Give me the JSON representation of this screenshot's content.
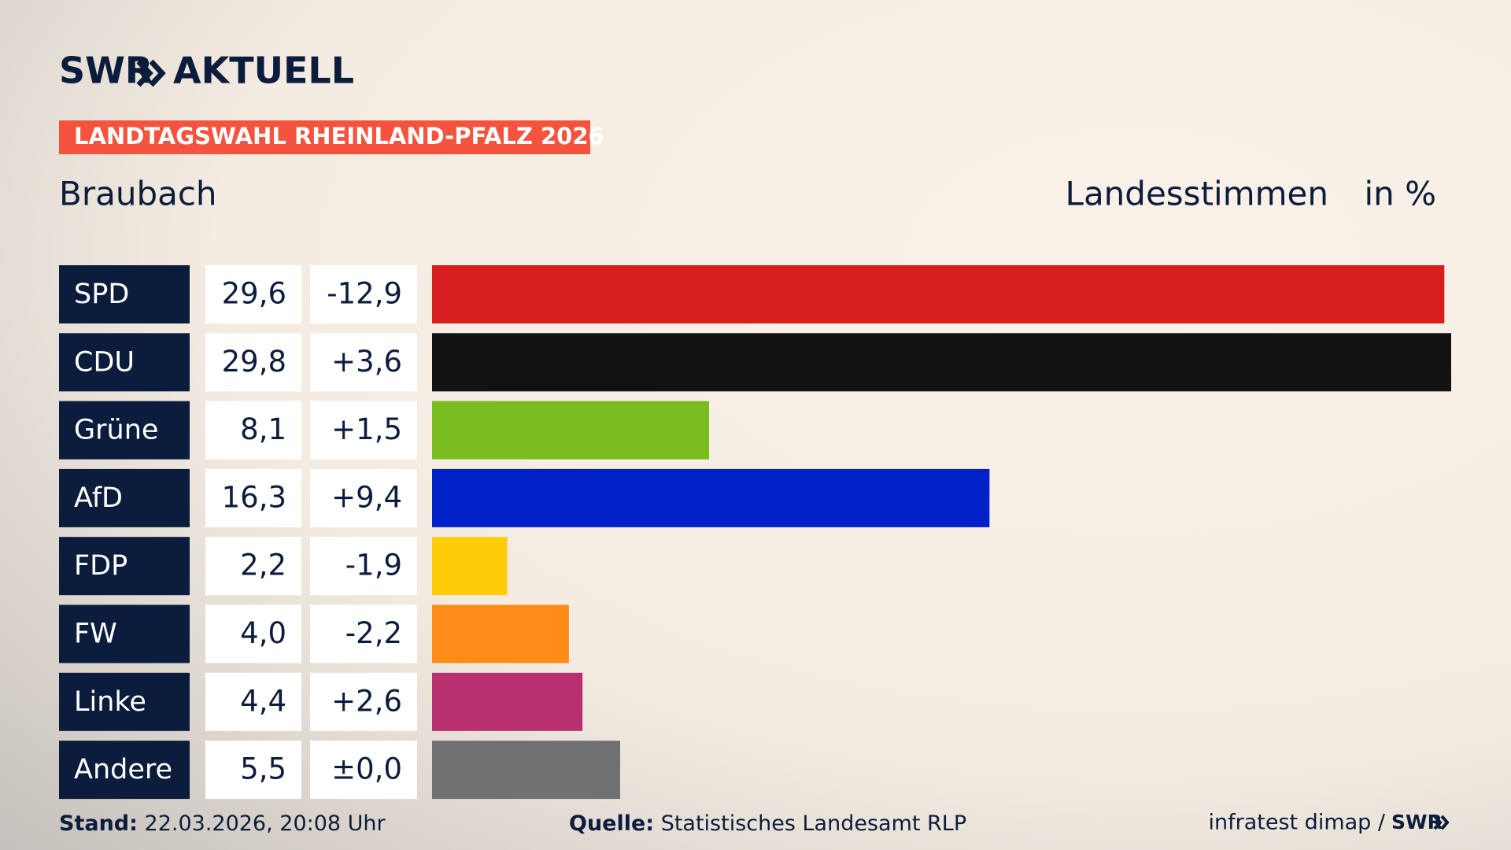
{
  "header": {
    "logo": "SWR",
    "brand": "AKTUELL",
    "badge": "LANDTAGSWAHL RHEINLAND-PFALZ 2026"
  },
  "chart_data": {
    "type": "bar",
    "orientation": "horizontal",
    "subtitle": "Braubach",
    "value_title": "Landesstimmen",
    "unit_title": "in %",
    "categories": [
      "SPD",
      "CDU",
      "Grüne",
      "AfD",
      "FDP",
      "FW",
      "Linke",
      "Andere"
    ],
    "values": [
      29.6,
      29.8,
      8.1,
      16.3,
      2.2,
      4.0,
      4.4,
      5.5
    ],
    "value_labels": [
      "29,6",
      "29,8",
      "8,1",
      "16,3",
      "2,2",
      "4,0",
      "4,4",
      "5,5"
    ],
    "changes": [
      "-12,9",
      "+3,6",
      "+1,5",
      "+9,4",
      "-1,9",
      "-2,2",
      "+2,6",
      "±0,0"
    ],
    "colors": [
      "#d81f1f",
      "#121212",
      "#78bc1e",
      "#0021c8",
      "#ffcc0a",
      "#ff8c17",
      "#b8306f",
      "#707173"
    ]
  },
  "footer": {
    "stand_label": "Stand:",
    "stand_value": "22.03.2026, 20:08 Uhr",
    "source_label": "Quelle:",
    "source_value": "Statistisches Landesamt RLP",
    "credit": "infratest dimap /",
    "credit_logo": "SWR"
  }
}
